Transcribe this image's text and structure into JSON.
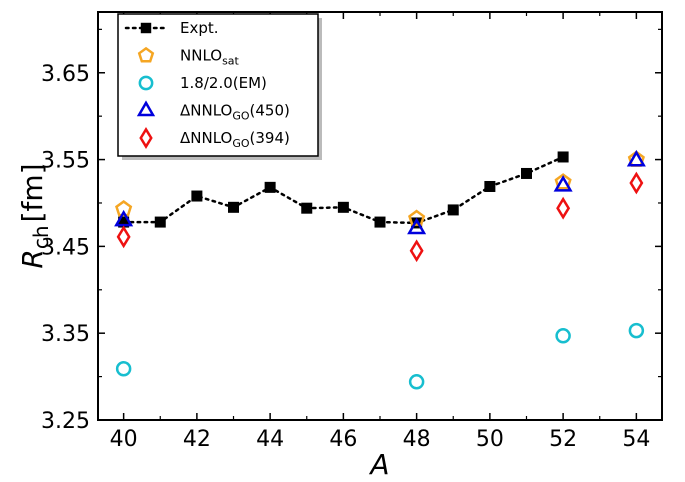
{
  "chart_data": {
    "type": "scatter",
    "xlabel": "A",
    "ylabel": {
      "main": "R",
      "sub": "ch",
      "unit": "[fm]"
    },
    "xlim": [
      39.3,
      54.7
    ],
    "ylim": [
      3.25,
      3.72
    ],
    "x_ticks": [
      40,
      42,
      44,
      46,
      48,
      50,
      52,
      54
    ],
    "y_ticks": [
      3.25,
      3.35,
      3.45,
      3.55,
      3.65
    ],
    "x_tick_labels": [
      "40",
      "42",
      "44",
      "46",
      "48",
      "50",
      "52",
      "54"
    ],
    "y_tick_labels": [
      "3.25",
      "3.35",
      "3.45",
      "3.55",
      "3.65"
    ],
    "legend_position": "top-left",
    "series": [
      {
        "key": "expt",
        "name": "Expt.",
        "name_sub": "",
        "name_tail": "",
        "marker": "square",
        "line": "dotted",
        "color": "#000000",
        "x": [
          40,
          41,
          42,
          43,
          44,
          45,
          46,
          47,
          48,
          49,
          50,
          51,
          52
        ],
        "y": [
          3.478,
          3.478,
          3.508,
          3.495,
          3.518,
          3.494,
          3.495,
          3.478,
          3.477,
          3.492,
          3.519,
          3.534,
          3.553
        ]
      },
      {
        "key": "nnlosat",
        "name": "NNLO",
        "name_sub": "sat",
        "name_tail": "",
        "marker": "pentagon",
        "line": "none",
        "color": "#f5a623",
        "x": [
          40,
          48,
          52,
          54
        ],
        "y": [
          3.493,
          3.482,
          3.524,
          3.55
        ]
      },
      {
        "key": "em",
        "name": "1.8/2.0(EM)",
        "name_sub": "",
        "name_tail": "",
        "marker": "circle",
        "line": "none",
        "color": "#17becf",
        "x": [
          40,
          48,
          52,
          54
        ],
        "y": [
          3.309,
          3.294,
          3.347,
          3.353
        ]
      },
      {
        "key": "go450",
        "name": "ΔNNLO",
        "name_sub": "GO",
        "name_tail": "(450)",
        "marker": "triangle",
        "line": "none",
        "color": "#0000dd",
        "x": [
          40,
          48,
          52,
          54
        ],
        "y": [
          3.48,
          3.471,
          3.52,
          3.549
        ]
      },
      {
        "key": "go394",
        "name": "ΔNNLO",
        "name_sub": "GO",
        "name_tail": "(394)",
        "marker": "diamond",
        "line": "none",
        "color": "#ee1111",
        "x": [
          40,
          48,
          52,
          54
        ],
        "y": [
          3.461,
          3.445,
          3.494,
          3.523
        ]
      }
    ]
  }
}
